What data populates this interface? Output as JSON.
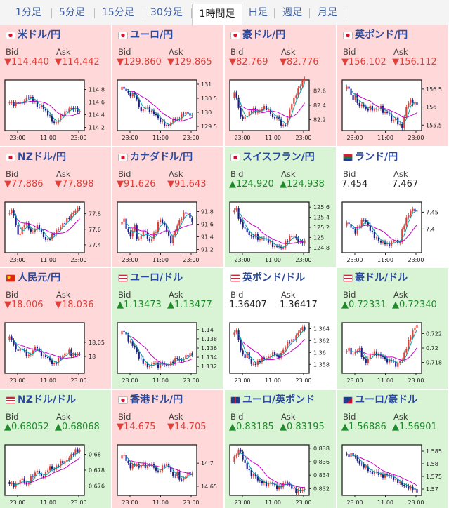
{
  "timeframe_tabs": [
    {
      "label": "1分足",
      "active": false
    },
    {
      "label": "5分足",
      "active": false
    },
    {
      "label": "15分足",
      "active": false
    },
    {
      "label": "30分足",
      "active": false
    },
    {
      "label": "1時間足",
      "active": true
    },
    {
      "label": "日足",
      "active": false
    },
    {
      "label": "週足",
      "active": false
    },
    {
      "label": "月足",
      "active": false
    }
  ],
  "colors": {
    "down_bg": "#ffd9d9",
    "up_bg": "#d8f4d5",
    "down_text": "#e0403a",
    "up_text": "#1f8a2a",
    "title": "#2b4a9e",
    "candle_up": "#e0403a",
    "candle_down": "#1b1b8c",
    "ma_long": "#c800c8",
    "ma_short": "#00a0a0"
  },
  "panels": [
    {
      "pair": "米ドル/円",
      "flag": "jp-flag-icon",
      "trend": "down",
      "bid_label": "Bid",
      "ask_label": "Ask",
      "bid": "▼114.440",
      "ask": "▼114.442"
    },
    {
      "pair": "ユーロ/円",
      "flag": "jp-flag-icon",
      "trend": "down",
      "bid_label": "Bid",
      "ask_label": "Ask",
      "bid": "▼129.860",
      "ask": "▼129.865"
    },
    {
      "pair": "豪ドル/円",
      "flag": "jp-flag-icon",
      "trend": "down",
      "bid_label": "Bid",
      "ask_label": "Ask",
      "bid": "▼82.769",
      "ask": "▼82.776"
    },
    {
      "pair": "英ポンド/円",
      "flag": "jp-flag-icon",
      "trend": "down",
      "bid_label": "Bid",
      "ask_label": "Ask",
      "bid": "▼156.102",
      "ask": "▼156.112"
    },
    {
      "pair": "NZドル/円",
      "flag": "jp-flag-icon",
      "trend": "down",
      "bid_label": "Bid",
      "ask_label": "Ask",
      "bid": "▼77.886",
      "ask": "▼77.898"
    },
    {
      "pair": "カナダドル/円",
      "flag": "jp-flag-icon",
      "trend": "down",
      "bid_label": "Bid",
      "ask_label": "Ask",
      "bid": "▼91.626",
      "ask": "▼91.643"
    },
    {
      "pair": "スイスフラン/円",
      "flag": "jp-flag-icon",
      "trend": "up",
      "bid_label": "Bid",
      "ask_label": "Ask",
      "bid": "▲124.920",
      "ask": "▲124.938"
    },
    {
      "pair": "ランド/円",
      "flag": "za-flag-icon",
      "trend": "neutral",
      "bid_label": "Bid",
      "ask_label": "Ask",
      "bid": "7.454",
      "ask": "7.467"
    },
    {
      "pair": "人民元/円",
      "flag": "cn-flag-icon",
      "trend": "down",
      "bid_label": "Bid",
      "ask_label": "Ask",
      "bid": "▼18.006",
      "ask": "▼18.036"
    },
    {
      "pair": "ユーロ/ドル",
      "flag": "us-flag-icon",
      "trend": "up",
      "bid_label": "Bid",
      "ask_label": "Ask",
      "bid": "▲1.13473",
      "ask": "▲1.13477"
    },
    {
      "pair": "英ポンド/ドル",
      "flag": "us-flag-icon",
      "trend": "neutral",
      "bid_label": "Bid",
      "ask_label": "Ask",
      "bid": "1.36407",
      "ask": "1.36417"
    },
    {
      "pair": "豪ドル/ドル",
      "flag": "us-flag-icon",
      "trend": "up",
      "bid_label": "Bid",
      "ask_label": "Ask",
      "bid": "▲0.72331",
      "ask": "▲0.72340"
    },
    {
      "pair": "NZドル/ドル",
      "flag": "us-flag-icon",
      "trend": "up",
      "bid_label": "Bid",
      "ask_label": "Ask",
      "bid": "▲0.68052",
      "ask": "▲0.68068"
    },
    {
      "pair": "香港ドル/円",
      "flag": "jp-flag-icon",
      "trend": "down",
      "bid_label": "Bid",
      "ask_label": "Ask",
      "bid": "▼14.675",
      "ask": "▼14.705"
    },
    {
      "pair": "ユーロ/英ポンド",
      "flag": "gb-flag-icon",
      "trend": "up",
      "bid_label": "Bid",
      "ask_label": "Ask",
      "bid": "▲0.83185",
      "ask": "▲0.83195"
    },
    {
      "pair": "ユーロ/豪ドル",
      "flag": "au-flag-icon",
      "trend": "up",
      "bid_label": "Bid",
      "ask_label": "Ask",
      "bid": "▲1.56886",
      "ask": "▲1.56901"
    }
  ],
  "chart_data": [
    {
      "type": "line",
      "x_ticks": [
        "23:00",
        "11:00",
        "23:00"
      ],
      "y_ticks": [
        114.8,
        114.6,
        114.4,
        114.2
      ],
      "ylim": [
        114.15,
        114.95
      ],
      "path": [
        114.58,
        114.6,
        114.55,
        114.6,
        114.58,
        114.62,
        114.7,
        114.65,
        114.6,
        114.5,
        114.55,
        114.45,
        114.4,
        114.3,
        114.25,
        114.35,
        114.4,
        114.45,
        114.5,
        114.5,
        114.48,
        114.44
      ]
    },
    {
      "type": "line",
      "x_ticks": [
        "23:00",
        "11:00",
        "23:00"
      ],
      "y_ticks": [
        131,
        130.5,
        130,
        129.5
      ],
      "ylim": [
        129.35,
        131.15
      ],
      "path": [
        130.8,
        130.9,
        130.7,
        130.6,
        130.7,
        130.3,
        130.0,
        130.2,
        130.1,
        130.0,
        129.9,
        129.7,
        129.6,
        129.5,
        129.6,
        129.8,
        129.7,
        129.9,
        130.0,
        129.95,
        129.86
      ]
    },
    {
      "type": "line",
      "x_ticks": [
        "23:00",
        "11:00",
        "23:00"
      ],
      "y_ticks": [
        82.6,
        82.4,
        82.2
      ],
      "ylim": [
        82.05,
        82.75
      ],
      "path": [
        82.5,
        82.6,
        82.3,
        82.2,
        82.25,
        82.3,
        82.35,
        82.3,
        82.32,
        82.38,
        82.35,
        82.3,
        82.2,
        82.25,
        82.15,
        82.1,
        82.2,
        82.4,
        82.5,
        82.6,
        82.7,
        82.77
      ]
    },
    {
      "type": "line",
      "x_ticks": [
        "23:00",
        "11:00",
        "23:00"
      ],
      "y_ticks": [
        156.5,
        156,
        155.5
      ],
      "ylim": [
        155.35,
        156.75
      ],
      "path": [
        156.5,
        156.6,
        156.2,
        156.3,
        156.0,
        156.1,
        155.9,
        156.0,
        155.9,
        155.95,
        156.0,
        155.8,
        155.9,
        155.6,
        155.7,
        155.5,
        155.45,
        156.0,
        156.2,
        156.1,
        156.1
      ]
    },
    {
      "type": "line",
      "x_ticks": [
        "23:00",
        "11:00",
        "23:00"
      ],
      "y_ticks": [
        77.8,
        77.6,
        77.4
      ],
      "ylim": [
        77.3,
        77.95
      ],
      "path": [
        77.8,
        77.85,
        77.75,
        77.5,
        77.6,
        77.7,
        77.6,
        77.55,
        77.65,
        77.6,
        77.5,
        77.45,
        77.5,
        77.55,
        77.6,
        77.65,
        77.7,
        77.75,
        77.8,
        77.85,
        77.88
      ]
    },
    {
      "type": "line",
      "x_ticks": [
        "23:00",
        "11:00",
        "23:00"
      ],
      "y_ticks": [
        91.8,
        91.6,
        91.4,
        91.2
      ],
      "ylim": [
        91.15,
        91.95
      ],
      "path": [
        91.6,
        91.7,
        91.5,
        91.4,
        91.6,
        91.3,
        91.45,
        91.5,
        91.3,
        91.4,
        91.5,
        91.7,
        91.6,
        91.5,
        91.3,
        91.45,
        91.6,
        91.7,
        91.8,
        91.75,
        91.63
      ]
    },
    {
      "type": "line",
      "x_ticks": [
        "23:00",
        "11:00",
        "23:00"
      ],
      "y_ticks": [
        125.6,
        125.4,
        125.2,
        125,
        124.8
      ],
      "ylim": [
        124.7,
        125.7
      ],
      "path": [
        125.5,
        125.6,
        125.3,
        125.2,
        125.1,
        125.0,
        125.05,
        124.95,
        125.0,
        124.95,
        124.9,
        124.8,
        124.85,
        124.75,
        124.9,
        125.0,
        125.05,
        124.95,
        124.9,
        124.92
      ]
    },
    {
      "type": "line",
      "x_ticks": [
        "23:00",
        "11:00",
        "23:00"
      ],
      "y_ticks": [
        7.45,
        7.4
      ],
      "ylim": [
        7.33,
        7.48
      ],
      "path": [
        7.41,
        7.42,
        7.4,
        7.39,
        7.41,
        7.43,
        7.42,
        7.4,
        7.38,
        7.37,
        7.36,
        7.36,
        7.35,
        7.36,
        7.37,
        7.35,
        7.4,
        7.43,
        7.45,
        7.46,
        7.45
      ]
    },
    {
      "type": "line",
      "x_ticks": [
        "23:00",
        "11:00",
        "23:00"
      ],
      "y_ticks": [
        18.05,
        18
      ],
      "ylim": [
        17.94,
        18.12
      ],
      "path": [
        18.06,
        18.07,
        18.03,
        18.02,
        18.03,
        18.01,
        18.0,
        18.02,
        18.04,
        18.01,
        18.0,
        18.0,
        17.98,
        17.97,
        17.99,
        18.0,
        18.01,
        18.02,
        18.0,
        18.01,
        18.006
      ]
    },
    {
      "type": "line",
      "x_ticks": [
        "23:00",
        "11:00",
        "23:00"
      ],
      "y_ticks": [
        1.14,
        1.138,
        1.136,
        1.134,
        1.132
      ],
      "ylim": [
        1.1305,
        1.1415
      ],
      "path": [
        1.139,
        1.14,
        1.138,
        1.137,
        1.136,
        1.134,
        1.133,
        1.132,
        1.132,
        1.133,
        1.132,
        1.133,
        1.132,
        1.1325,
        1.133,
        1.134,
        1.133,
        1.134,
        1.1345,
        1.1347
      ]
    },
    {
      "type": "line",
      "x_ticks": [
        "23:00",
        "11:00",
        "23:00"
      ],
      "y_ticks": [
        1.364,
        1.362,
        1.36,
        1.358
      ],
      "ylim": [
        1.3565,
        1.365
      ],
      "path": [
        1.363,
        1.364,
        1.361,
        1.359,
        1.36,
        1.358,
        1.358,
        1.3585,
        1.359,
        1.359,
        1.3595,
        1.36,
        1.359,
        1.36,
        1.361,
        1.362,
        1.362,
        1.363,
        1.364,
        1.3641
      ]
    },
    {
      "type": "line",
      "x_ticks": [
        "23:00",
        "11:00",
        "23:00"
      ],
      "y_ticks": [
        0.722,
        0.72,
        0.718
      ],
      "ylim": [
        0.7165,
        0.7235
      ],
      "path": [
        0.7195,
        0.72,
        0.719,
        0.7195,
        0.72,
        0.7185,
        0.718,
        0.719,
        0.7195,
        0.719,
        0.719,
        0.7185,
        0.718,
        0.7185,
        0.7175,
        0.718,
        0.7185,
        0.72,
        0.7215,
        0.7225,
        0.7233
      ]
    },
    {
      "type": "line",
      "x_ticks": [
        "23:00",
        "11:00",
        "23:00"
      ],
      "y_ticks": [
        0.68,
        0.678,
        0.676
      ],
      "ylim": [
        0.6748,
        0.6812
      ],
      "path": [
        0.6765,
        0.6762,
        0.676,
        0.6765,
        0.677,
        0.676,
        0.677,
        0.6775,
        0.678,
        0.677,
        0.6775,
        0.6785,
        0.678,
        0.6785,
        0.679,
        0.679,
        0.6795,
        0.68,
        0.6805,
        0.6805
      ]
    },
    {
      "type": "line",
      "x_ticks": [
        "23:00",
        "11:00",
        "23:00"
      ],
      "y_ticks": [
        14.7,
        14.65
      ],
      "ylim": [
        14.63,
        14.74
      ],
      "path": [
        14.71,
        14.72,
        14.7,
        14.69,
        14.7,
        14.69,
        14.7,
        14.69,
        14.7,
        14.69,
        14.68,
        14.69,
        14.7,
        14.69,
        14.67,
        14.68,
        14.66,
        14.67,
        14.68,
        14.675
      ]
    },
    {
      "type": "line",
      "x_ticks": [
        "23:00",
        "11:00",
        "23:00"
      ],
      "y_ticks": [
        0.838,
        0.836,
        0.834,
        0.832
      ],
      "ylim": [
        0.831,
        0.8385
      ],
      "path": [
        0.836,
        0.837,
        0.838,
        0.836,
        0.835,
        0.834,
        0.834,
        0.833,
        0.833,
        0.8325,
        0.833,
        0.8325,
        0.832,
        0.8325,
        0.833,
        0.8325,
        0.832,
        0.8315,
        0.8318,
        0.83185
      ]
    },
    {
      "type": "line",
      "x_ticks": [
        "23:00",
        "11:00",
        "23:00"
      ],
      "y_ticks": [
        1.585,
        1.58,
        1.575,
        1.57
      ],
      "ylim": [
        1.5675,
        1.5875
      ],
      "path": [
        1.584,
        1.583,
        1.584,
        1.582,
        1.58,
        1.579,
        1.578,
        1.576,
        1.577,
        1.576,
        1.575,
        1.576,
        1.575,
        1.574,
        1.573,
        1.572,
        1.571,
        1.5705,
        1.57,
        1.5689
      ]
    }
  ]
}
